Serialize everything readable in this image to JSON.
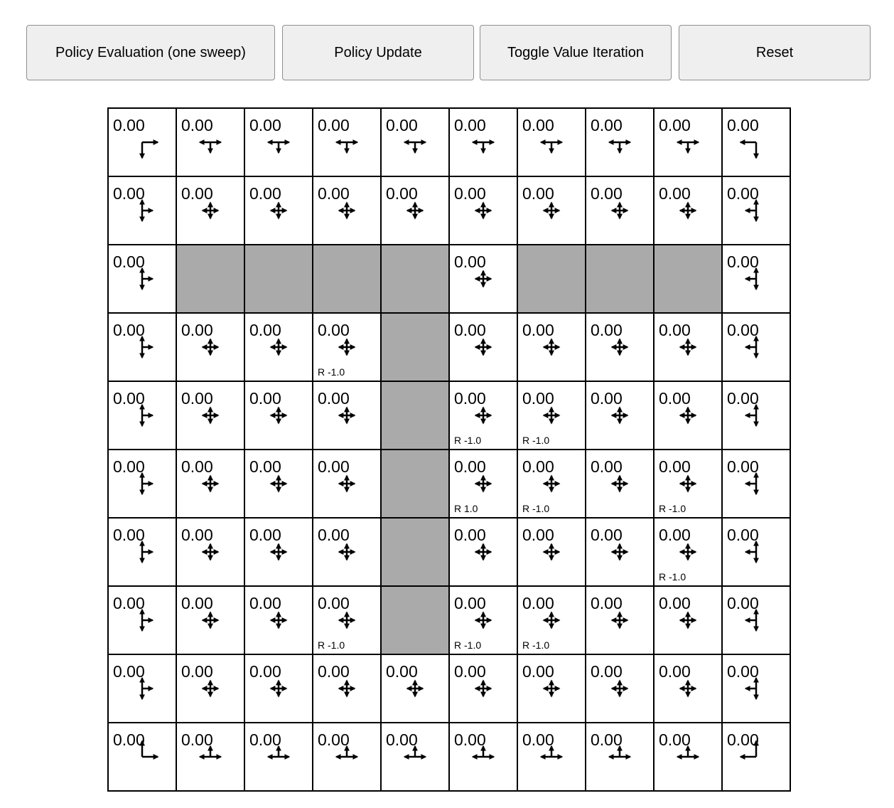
{
  "toolbar": {
    "eval_label": "Policy Evaluation (one sweep)",
    "update_label": "Policy Update",
    "toggle_label": "Toggle Value Iteration",
    "reset_label": "Reset"
  },
  "colors": {
    "wall": "#aaaaaa",
    "cell": "#ffffff",
    "border": "#000000"
  },
  "grid": {
    "rows": 10,
    "cols": 10,
    "value_text": "0.00",
    "walls": [
      [
        2,
        1
      ],
      [
        2,
        2
      ],
      [
        2,
        3
      ],
      [
        2,
        4
      ],
      [
        2,
        6
      ],
      [
        2,
        7
      ],
      [
        2,
        8
      ],
      [
        3,
        4
      ],
      [
        4,
        4
      ],
      [
        5,
        4
      ],
      [
        6,
        4
      ],
      [
        7,
        4
      ]
    ],
    "rewards": [
      {
        "row": 3,
        "col": 3,
        "label": "R -1.0"
      },
      {
        "row": 4,
        "col": 5,
        "label": "R -1.0"
      },
      {
        "row": 4,
        "col": 6,
        "label": "R -1.0"
      },
      {
        "row": 5,
        "col": 5,
        "label": "R 1.0"
      },
      {
        "row": 5,
        "col": 6,
        "label": "R -1.0"
      },
      {
        "row": 5,
        "col": 8,
        "label": "R -1.0"
      },
      {
        "row": 6,
        "col": 8,
        "label": "R -1.0"
      },
      {
        "row": 7,
        "col": 3,
        "label": "R -1.0"
      },
      {
        "row": 7,
        "col": 5,
        "label": "R -1.0"
      },
      {
        "row": 7,
        "col": 6,
        "label": "R -1.0"
      }
    ],
    "policy": "uniform over valid actions (left, up, right, down)"
  }
}
